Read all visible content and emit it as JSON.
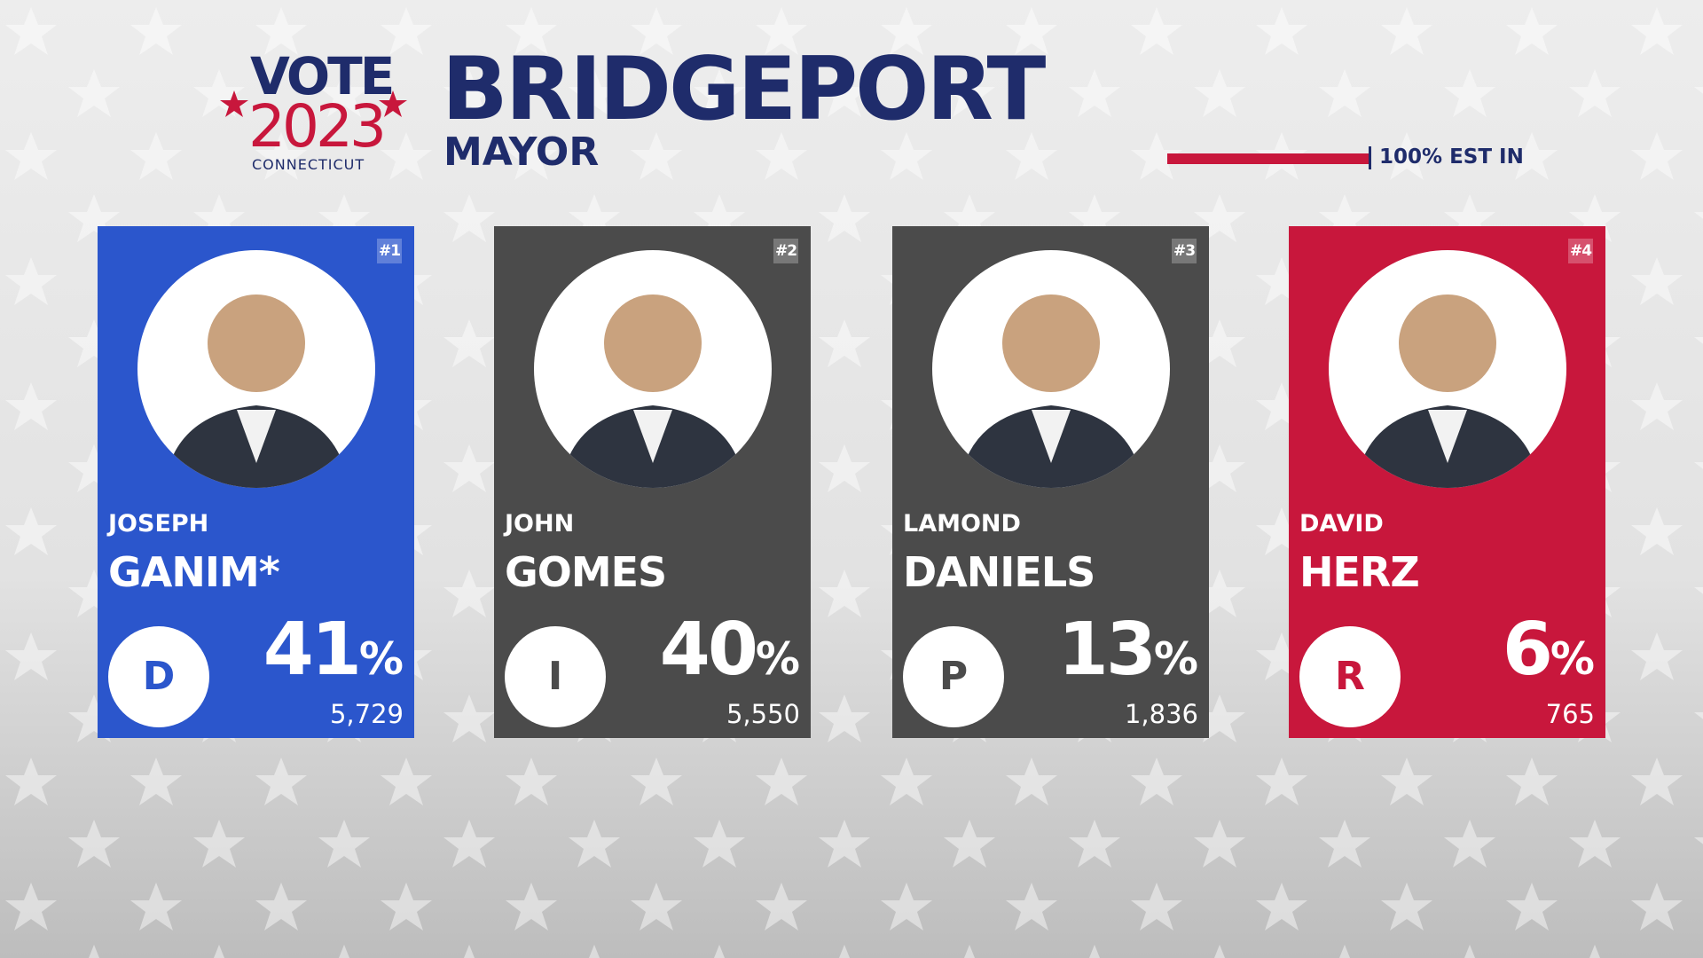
{
  "header": {
    "logo": {
      "vote": "VOTE",
      "year": "2023",
      "state": "CONNECTICUT"
    },
    "title": "BRIDGEPORT",
    "subtitle": "MAYOR",
    "reporting": "100% EST IN"
  },
  "candidates": [
    {
      "rank": "#1",
      "first_name": "JOSEPH",
      "last_name": "GANIM*",
      "party": "D",
      "percent": "41",
      "percent_sign": "%",
      "votes": "5,729",
      "color": "#2b56cc"
    },
    {
      "rank": "#2",
      "first_name": "JOHN",
      "last_name": "GOMES",
      "party": "I",
      "percent": "40",
      "percent_sign": "%",
      "votes": "5,550",
      "color": "#4b4b4b"
    },
    {
      "rank": "#3",
      "first_name": "LAMOND",
      "last_name": "DANIELS",
      "party": "P",
      "percent": "13",
      "percent_sign": "%",
      "votes": "1,836",
      "color": "#4b4b4b"
    },
    {
      "rank": "#4",
      "first_name": "DAVID",
      "last_name": "HERZ",
      "party": "R",
      "percent": "6",
      "percent_sign": "%",
      "votes": "765",
      "color": "#c8173c"
    }
  ]
}
